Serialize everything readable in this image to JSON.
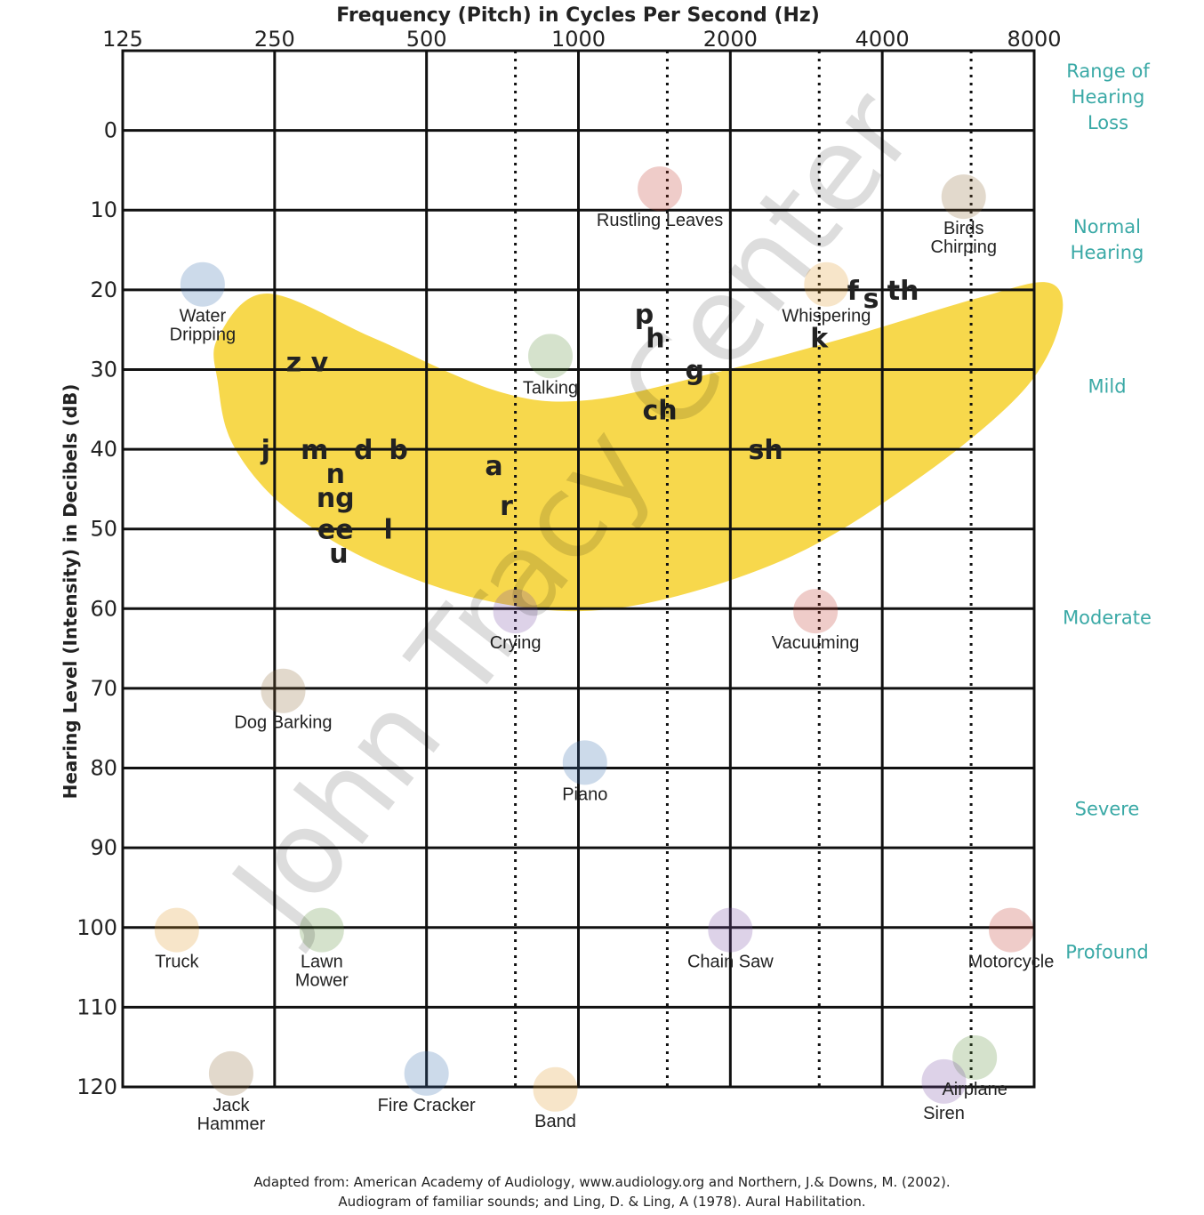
{
  "chart_data": {
    "type": "scatter",
    "title": "Frequency (Pitch) in Cycles Per Second (Hz)",
    "xlabel": "Frequency (Pitch) in Cycles Per Second (Hz)",
    "ylabel": "Hearing Level (Intensity) in Decibels (dB)",
    "x_scale": "log2",
    "x_ticks": [
      125,
      250,
      500,
      1000,
      2000,
      4000,
      8000
    ],
    "x_tick_labels": [
      "125",
      "250",
      "500",
      "1000",
      "2000",
      "4000",
      "8000"
    ],
    "x_dotted_lines": [
      750,
      1500,
      3000,
      6000
    ],
    "xlim": [
      125,
      8000
    ],
    "y_ticks": [
      0,
      10,
      20,
      30,
      40,
      50,
      60,
      70,
      80,
      90,
      100,
      110,
      120
    ],
    "y_tick_labels": [
      "0",
      "10",
      "20",
      "30",
      "40",
      "50",
      "60",
      "70",
      "80",
      "90",
      "100",
      "110",
      "120"
    ],
    "ylim": [
      -10,
      120
    ],
    "y_inverted": true,
    "hearing_loss_ranges": {
      "header": [
        "Range of",
        "Hearing",
        "Loss"
      ],
      "categories": [
        {
          "label": "Normal",
          "label2": "Hearing",
          "db": 12
        },
        {
          "label": "Mild",
          "db": 32
        },
        {
          "label": "Moderate",
          "db": 61
        },
        {
          "label": "Severe",
          "db": 85
        },
        {
          "label": "Profound",
          "db": 103
        }
      ]
    },
    "speech_banana_color": "#f7d84c",
    "speech_sounds": [
      {
        "text": "z v",
        "hz": 290,
        "db": 29
      },
      {
        "text": "j",
        "hz": 240,
        "db": 40
      },
      {
        "text": "m",
        "hz": 300,
        "db": 40
      },
      {
        "text": "d",
        "hz": 375,
        "db": 40
      },
      {
        "text": "b",
        "hz": 440,
        "db": 40
      },
      {
        "text": "n",
        "hz": 330,
        "db": 43
      },
      {
        "text": "ng",
        "hz": 330,
        "db": 46
      },
      {
        "text": "ee",
        "hz": 330,
        "db": 50
      },
      {
        "text": "l",
        "hz": 420,
        "db": 50
      },
      {
        "text": "u",
        "hz": 335,
        "db": 53
      },
      {
        "text": "a",
        "hz": 680,
        "db": 42
      },
      {
        "text": "r",
        "hz": 720,
        "db": 47
      },
      {
        "text": "p",
        "hz": 1350,
        "db": 23
      },
      {
        "text": "h",
        "hz": 1420,
        "db": 26
      },
      {
        "text": "g",
        "hz": 1700,
        "db": 30
      },
      {
        "text": "ch",
        "hz": 1450,
        "db": 35
      },
      {
        "text": "sh",
        "hz": 2350,
        "db": 40
      },
      {
        "text": "k",
        "hz": 3000,
        "db": 26
      },
      {
        "text": "f",
        "hz": 3500,
        "db": 20
      },
      {
        "text": "s",
        "hz": 3800,
        "db": 21
      },
      {
        "text": "th",
        "hz": 4400,
        "db": 20
      }
    ],
    "familiar_sounds": [
      {
        "label": "Rustling Leaves",
        "hz": 1450,
        "db": 12
      },
      {
        "label": "Birds",
        "label2": "Chirping",
        "hz": 5800,
        "db": 13
      },
      {
        "label": "Water",
        "label2": "Dripping",
        "hz": 180,
        "db": 24
      },
      {
        "label": "Whispering",
        "hz": 3100,
        "db": 24
      },
      {
        "label": "Talking",
        "hz": 880,
        "db": 33
      },
      {
        "label": "Crying",
        "hz": 750,
        "db": 65
      },
      {
        "label": "Vacuuming",
        "hz": 2950,
        "db": 65
      },
      {
        "label": "Dog Barking",
        "hz": 260,
        "db": 75
      },
      {
        "label": "Piano",
        "hz": 1030,
        "db": 84
      },
      {
        "label": "Truck",
        "hz": 160,
        "db": 105
      },
      {
        "label": "Lawn",
        "label2": "Mower",
        "hz": 310,
        "db": 105
      },
      {
        "label": "Chain Saw",
        "hz": 2000,
        "db": 105
      },
      {
        "label": "Motorcycle",
        "hz": 7200,
        "db": 105
      },
      {
        "label": "Jack",
        "label2": "Hammer",
        "hz": 205,
        "db": 123
      },
      {
        "label": "Fire Cracker",
        "hz": 500,
        "db": 123
      },
      {
        "label": "Band",
        "hz": 900,
        "db": 125
      },
      {
        "label": "Airplane",
        "hz": 6100,
        "db": 121
      },
      {
        "label": "Siren",
        "hz": 5300,
        "db": 124
      }
    ]
  },
  "watermark": "John Tracy Center",
  "source": {
    "line1": "Adapted from: American Academy of Audiology, www.audiology.org and Northern, J.& Downs, M. (2002).",
    "line2": "Audiogram of familiar sounds; and Ling, D. & Ling, A (1978). Aural Habilitation."
  },
  "colors": {
    "grid": "#111111",
    "category": "#3aa9a6",
    "banana": "#f7d84c"
  }
}
